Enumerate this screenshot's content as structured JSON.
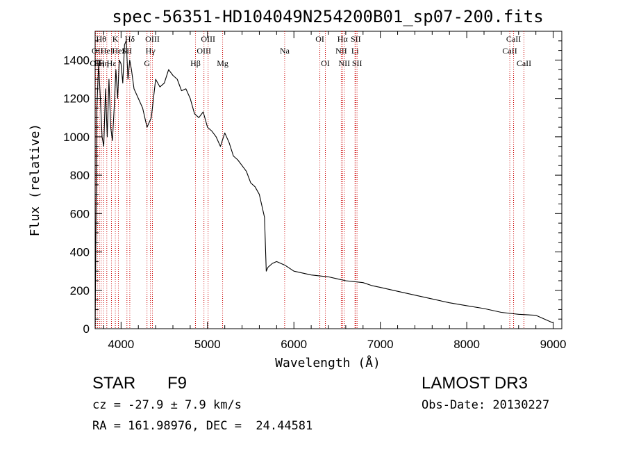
{
  "chart_data": {
    "type": "line",
    "title": "spec-56351-HD104049N254200B01_sp07-200.fits",
    "xlabel": "Wavelength (Å)",
    "ylabel": "Flux (relative)",
    "xlim": [
      3700,
      9100
    ],
    "ylim": [
      0,
      1550
    ],
    "xticks": [
      4000,
      5000,
      6000,
      7000,
      8000,
      9000
    ],
    "yticks": [
      0,
      200,
      400,
      600,
      800,
      1000,
      1200,
      1400
    ],
    "grid": false,
    "series": [
      {
        "name": "spectrum",
        "x": [
          3700,
          3720,
          3740,
          3760,
          3780,
          3800,
          3820,
          3840,
          3860,
          3880,
          3900,
          3920,
          3940,
          3960,
          3980,
          4000,
          4020,
          4040,
          4060,
          4080,
          4100,
          4120,
          4150,
          4200,
          4250,
          4300,
          4350,
          4400,
          4450,
          4500,
          4550,
          4600,
          4650,
          4700,
          4750,
          4800,
          4850,
          4900,
          4950,
          5000,
          5050,
          5100,
          5150,
          5200,
          5250,
          5300,
          5350,
          5400,
          5450,
          5500,
          5550,
          5600,
          5640,
          5660,
          5680,
          5700,
          5750,
          5800,
          5900,
          6000,
          6100,
          6200,
          6300,
          6400,
          6500,
          6600,
          6700,
          6800,
          6900,
          7000,
          7200,
          7400,
          7600,
          7800,
          8000,
          8200,
          8400,
          8600,
          8800,
          9000
        ],
        "y": [
          10,
          1150,
          1380,
          1200,
          1000,
          950,
          1250,
          1000,
          1300,
          1050,
          980,
          1150,
          1350,
          1200,
          1400,
          1380,
          1280,
          1480,
          1500,
          1300,
          1400,
          1350,
          1250,
          1200,
          1150,
          1050,
          1100,
          1300,
          1260,
          1280,
          1350,
          1320,
          1300,
          1240,
          1250,
          1200,
          1120,
          1100,
          1130,
          1050,
          1030,
          1000,
          950,
          1020,
          970,
          900,
          880,
          850,
          820,
          760,
          740,
          700,
          620,
          580,
          300,
          320,
          340,
          350,
          330,
          300,
          290,
          280,
          275,
          270,
          260,
          250,
          245,
          240,
          225,
          215,
          195,
          175,
          155,
          135,
          120,
          105,
          85,
          75,
          70,
          30
        ]
      }
    ],
    "lines": [
      {
        "x": 3706,
        "row": 2,
        "label": "OII"
      },
      {
        "x": 3727,
        "row": 1,
        "label": "OII"
      },
      {
        "x": 3750,
        "row": 2,
        "label": "Hη"
      },
      {
        "x": 3770,
        "row": 0,
        "label": "Hθ"
      },
      {
        "x": 3798,
        "row": 2,
        "label": "Hη"
      },
      {
        "x": 3835,
        "row": 1,
        "label": "HeI"
      },
      {
        "x": 3889,
        "row": 2,
        "label": "Hε"
      },
      {
        "x": 3934,
        "row": 0,
        "label": "K"
      },
      {
        "x": 3969,
        "row": 1,
        "label": "HeI"
      },
      {
        "x": 4101,
        "row": 0,
        "label": "Hδ"
      },
      {
        "x": 4068,
        "row": 1,
        "label": "SII"
      },
      {
        "x": 4300,
        "row": 2,
        "label": "G"
      },
      {
        "x": 4340,
        "row": 1,
        "label": "Hγ"
      },
      {
        "x": 4363,
        "row": 0,
        "label": "OIII"
      },
      {
        "x": 4861,
        "row": 2,
        "label": "Hβ"
      },
      {
        "x": 4959,
        "row": 1,
        "label": "OIII"
      },
      {
        "x": 5007,
        "row": 0,
        "label": "OIII"
      },
      {
        "x": 5175,
        "row": 2,
        "label": "Mg"
      },
      {
        "x": 5893,
        "row": 1,
        "label": "Na"
      },
      {
        "x": 6300,
        "row": 0,
        "label": "OI"
      },
      {
        "x": 6364,
        "row": 2,
        "label": "OI"
      },
      {
        "x": 6548,
        "row": 1,
        "label": "NII"
      },
      {
        "x": 6563,
        "row": 0,
        "label": "Hα"
      },
      {
        "x": 6583,
        "row": 2,
        "label": "NII"
      },
      {
        "x": 6707,
        "row": 1,
        "label": "Li"
      },
      {
        "x": 6716,
        "row": 0,
        "label": "SII"
      },
      {
        "x": 6731,
        "row": 2,
        "label": "SII"
      },
      {
        "x": 8498,
        "row": 1,
        "label": "CaII"
      },
      {
        "x": 8542,
        "row": 0,
        "label": "CaII"
      },
      {
        "x": 8662,
        "row": 2,
        "label": "CaII"
      }
    ]
  },
  "info": {
    "object_class": "STAR",
    "subclass": "F9",
    "survey": "LAMOST DR3",
    "redshift": "cz = -27.9 ± 7.9 km/s",
    "obs_date": "Obs-Date: 20130227",
    "coords": "RA = 161.98976, DEC =  24.44581"
  },
  "colors": {
    "spectrum": "#000000",
    "line_marker": "#cc0000",
    "axis": "#000000"
  }
}
